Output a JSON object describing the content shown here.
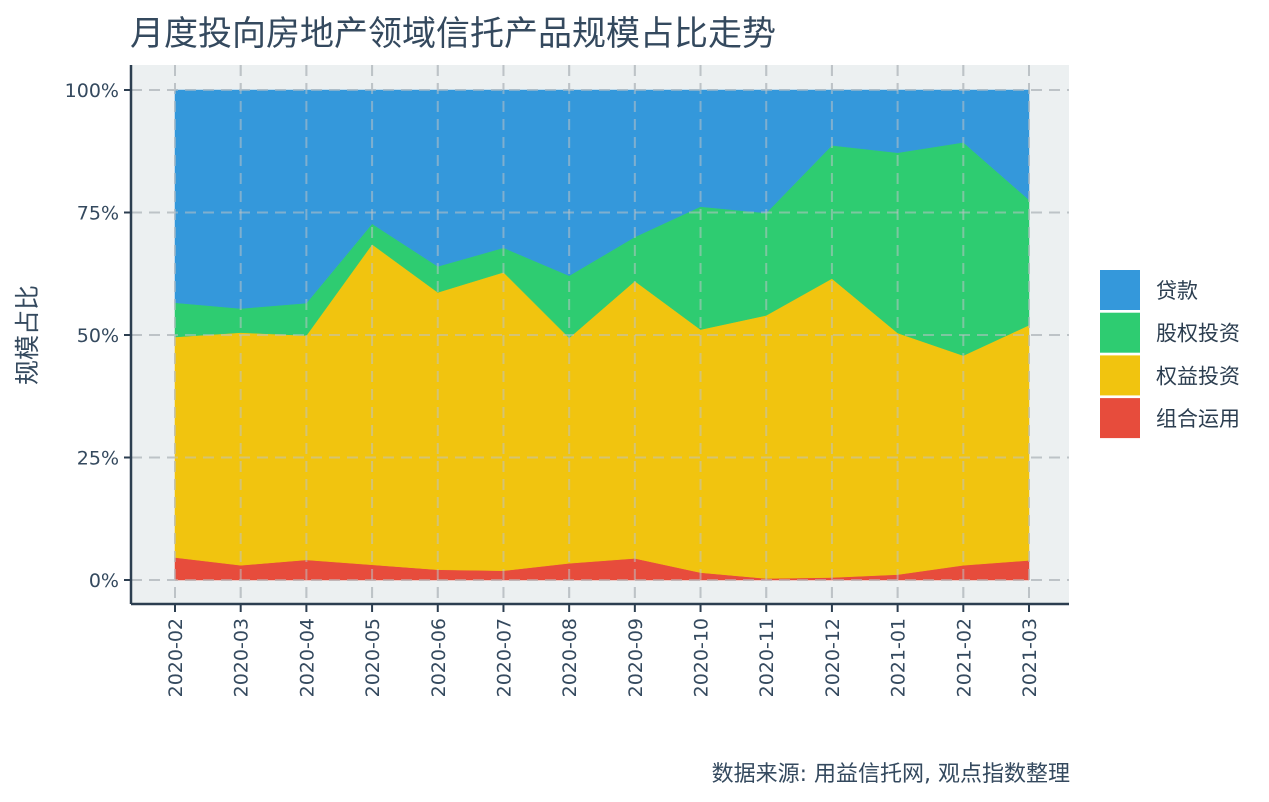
{
  "title": "月度投向房地产领域信托产品规模占比走势",
  "caption": "数据来源: 用益信托网, 观点指数整理",
  "chart_data": {
    "type": "area",
    "stacked": true,
    "normalized": true,
    "title": "月度投向房地产领域信托产品规模占比走势",
    "xlabel": "",
    "ylabel": "规模占比",
    "categories": [
      "2020-02",
      "2020-03",
      "2020-04",
      "2020-05",
      "2020-06",
      "2020-07",
      "2020-08",
      "2020-09",
      "2020-10",
      "2020-11",
      "2020-12",
      "2021-01",
      "2021-02",
      "2021-03"
    ],
    "yticks": [
      "0%",
      "25%",
      "50%",
      "75%",
      "100%"
    ],
    "ylim": [
      0,
      100
    ],
    "grid": true,
    "legend_position": "right",
    "series": [
      {
        "name": "组合运用",
        "color": "#e74c3c",
        "values": [
          4.6,
          3.0,
          4.1,
          3.1,
          2.1,
          1.9,
          3.4,
          4.4,
          1.5,
          0.3,
          0.5,
          1.1,
          3.0,
          4.0
        ]
      },
      {
        "name": "权益投资",
        "color": "#f1c40f",
        "values": [
          45.0,
          47.5,
          45.8,
          65.4,
          56.6,
          60.9,
          46.0,
          56.6,
          49.6,
          53.7,
          61.0,
          49.3,
          42.8,
          48.0
        ]
      },
      {
        "name": "股权投资",
        "color": "#2ecc71",
        "values": [
          7.0,
          4.9,
          6.6,
          4.2,
          5.3,
          5.0,
          12.7,
          9.0,
          25.1,
          20.9,
          27.2,
          36.8,
          43.5,
          25.6
        ]
      },
      {
        "name": "贷款",
        "color": "#3498db",
        "values": [
          43.4,
          44.6,
          43.5,
          27.3,
          36.0,
          32.2,
          37.9,
          30.0,
          23.8,
          25.1,
          11.3,
          12.8,
          10.7,
          22.4
        ]
      }
    ],
    "legend_order": [
      "贷款",
      "股权投资",
      "权益投资",
      "组合运用"
    ],
    "panel_color": "#ecf0f1",
    "grid_color": "#bdc3c7"
  }
}
